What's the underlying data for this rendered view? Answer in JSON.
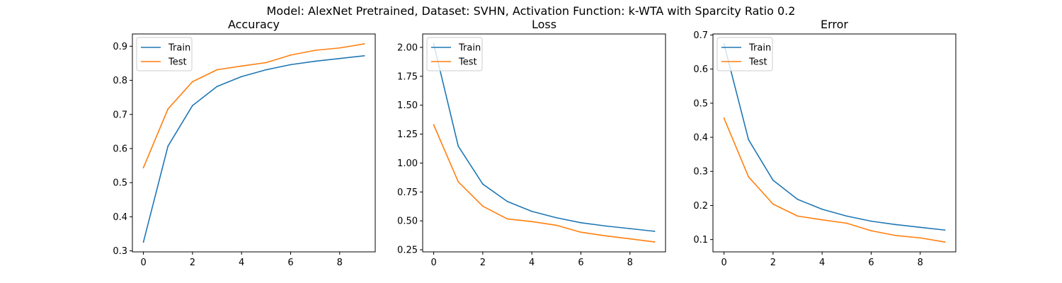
{
  "figure": {
    "suptitle": "Model: AlexNet Pretrained, Dataset: SVHN, Activation Function: k-WTA with Sparcity Ratio 0.2",
    "colors": {
      "train": "#1f77b4",
      "test": "#ff7f0e",
      "axes": "#000000",
      "background": "#ffffff"
    }
  },
  "chart_data": [
    {
      "type": "line",
      "title": "Accuracy",
      "xlabel": "",
      "ylabel": "",
      "x": [
        0,
        1,
        2,
        3,
        4,
        5,
        6,
        7,
        8,
        9
      ],
      "series": [
        {
          "name": "Train",
          "values": [
            0.326,
            0.607,
            0.726,
            0.782,
            0.811,
            0.831,
            0.846,
            0.856,
            0.864,
            0.872
          ]
        },
        {
          "name": "Test",
          "values": [
            0.544,
            0.716,
            0.796,
            0.831,
            0.842,
            0.852,
            0.874,
            0.888,
            0.895,
            0.907
          ]
        }
      ],
      "xlim": [
        -0.45,
        9.45
      ],
      "ylim": [
        0.297,
        0.936
      ],
      "xticks": [
        0,
        2,
        4,
        6,
        8
      ],
      "yticks": [
        0.3,
        0.4,
        0.5,
        0.6,
        0.7,
        0.8,
        0.9
      ],
      "ytick_labels": [
        "0.3",
        "0.4",
        "0.5",
        "0.6",
        "0.7",
        "0.8",
        "0.9"
      ],
      "grid": false,
      "legend": "upper-left"
    },
    {
      "type": "line",
      "title": "Loss",
      "xlabel": "",
      "ylabel": "",
      "x": [
        0,
        1,
        2,
        3,
        4,
        5,
        6,
        7,
        8,
        9
      ],
      "series": [
        {
          "name": "Train",
          "values": [
            2.03,
            1.146,
            0.818,
            0.668,
            0.582,
            0.527,
            0.484,
            0.456,
            0.433,
            0.41
          ]
        },
        {
          "name": "Test",
          "values": [
            1.33,
            0.838,
            0.627,
            0.517,
            0.494,
            0.462,
            0.402,
            0.371,
            0.345,
            0.318
          ]
        }
      ],
      "xlim": [
        -0.45,
        9.45
      ],
      "ylim": [
        0.232,
        2.116
      ],
      "xticks": [
        0,
        2,
        4,
        6,
        8
      ],
      "yticks": [
        0.25,
        0.5,
        0.75,
        1.0,
        1.25,
        1.5,
        1.75,
        2.0
      ],
      "ytick_labels": [
        "0.25",
        "0.50",
        "0.75",
        "1.00",
        "1.25",
        "1.50",
        "1.75",
        "2.00"
      ],
      "grid": false,
      "legend": "upper-left"
    },
    {
      "type": "line",
      "title": "Error",
      "xlabel": "",
      "ylabel": "",
      "x": [
        0,
        1,
        2,
        3,
        4,
        5,
        6,
        7,
        8,
        9
      ],
      "series": [
        {
          "name": "Train",
          "values": [
            0.674,
            0.393,
            0.274,
            0.218,
            0.189,
            0.169,
            0.154,
            0.144,
            0.136,
            0.128
          ]
        },
        {
          "name": "Test",
          "values": [
            0.456,
            0.284,
            0.204,
            0.169,
            0.158,
            0.148,
            0.126,
            0.112,
            0.105,
            0.093
          ]
        }
      ],
      "xlim": [
        -0.45,
        9.45
      ],
      "ylim": [
        0.064,
        0.703
      ],
      "xticks": [
        0,
        2,
        4,
        6,
        8
      ],
      "yticks": [
        0.1,
        0.2,
        0.3,
        0.4,
        0.5,
        0.6,
        0.7
      ],
      "ytick_labels": [
        "0.1",
        "0.2",
        "0.3",
        "0.4",
        "0.5",
        "0.6",
        "0.7"
      ],
      "grid": false,
      "legend": "upper-left"
    }
  ]
}
